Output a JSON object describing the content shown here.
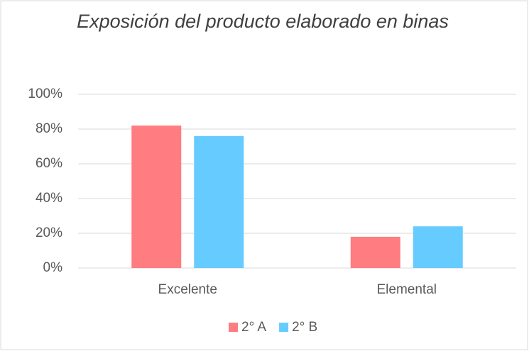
{
  "chart_data": {
    "type": "bar",
    "title": "Exposición del producto elaborado en binas",
    "categories": [
      "Excelente",
      "Elemental"
    ],
    "series": [
      {
        "name": "2° A",
        "color": "#ff7c80",
        "values": [
          82,
          18
        ]
      },
      {
        "name": "2° B",
        "color": "#66ccff",
        "values": [
          76,
          24
        ]
      }
    ],
    "ylim": [
      0,
      100
    ],
    "yticks": [
      {
        "value": 0,
        "label": "0%"
      },
      {
        "value": 20,
        "label": "20%"
      },
      {
        "value": 40,
        "label": "40%"
      },
      {
        "value": 60,
        "label": "60%"
      },
      {
        "value": 80,
        "label": "80%"
      },
      {
        "value": 100,
        "label": "100%"
      }
    ],
    "grid": true,
    "legend": "bottom"
  }
}
